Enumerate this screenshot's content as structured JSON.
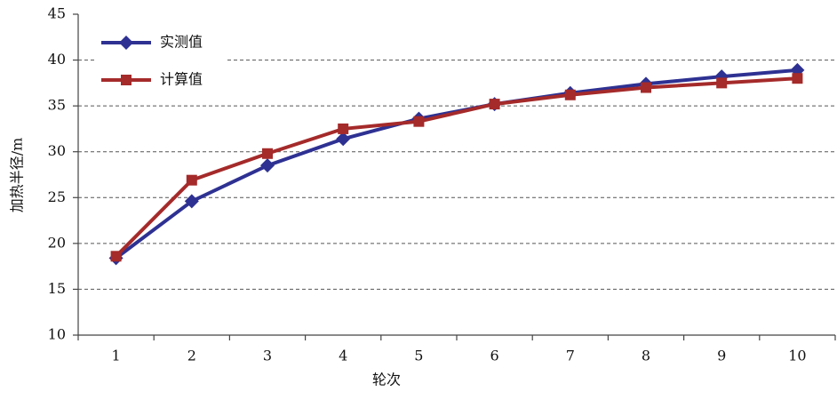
{
  "chart_data": {
    "type": "line",
    "x_label": "轮次",
    "y_label": "加热半径/m",
    "categories": [
      "1",
      "2",
      "3",
      "4",
      "5",
      "6",
      "7",
      "8",
      "9",
      "10"
    ],
    "series": [
      {
        "name": "实测值",
        "color": "#2e3192",
        "marker": "diamond",
        "values": [
          18.4,
          24.6,
          28.5,
          31.4,
          33.6,
          35.2,
          36.4,
          37.4,
          38.2,
          38.9
        ]
      },
      {
        "name": "计算值",
        "color": "#a52a2a",
        "marker": "square",
        "values": [
          18.6,
          26.9,
          29.8,
          32.5,
          33.3,
          35.2,
          36.2,
          37.0,
          37.5,
          38.0
        ]
      }
    ],
    "ylim": [
      10,
      45
    ],
    "yticks": [
      10,
      15,
      20,
      25,
      30,
      35,
      40,
      45
    ],
    "grid": true,
    "legend": "upper-left"
  }
}
